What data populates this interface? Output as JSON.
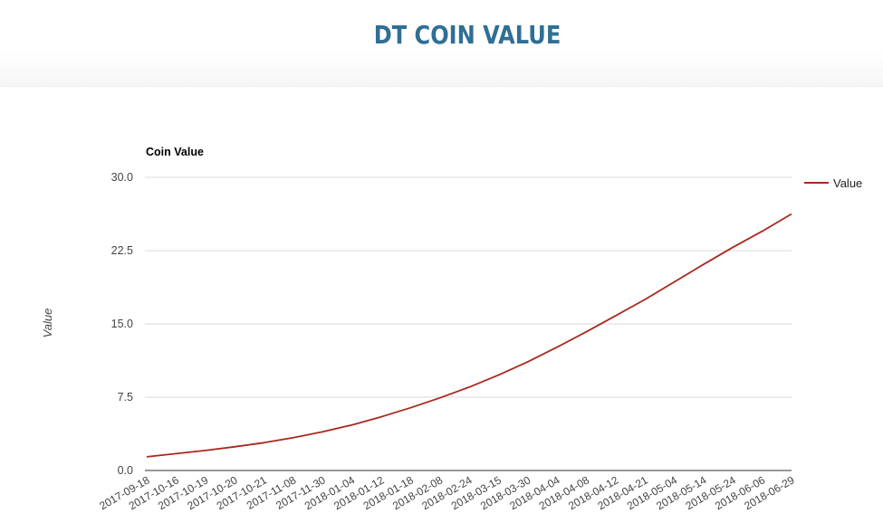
{
  "page": {
    "title": "DT COIN VALUE"
  },
  "colors": {
    "title": "#2f6f95",
    "series": "#a8291c",
    "grid": "#d9d9d9",
    "axis": "#333333",
    "text": "#444444"
  },
  "chart_data": {
    "type": "line",
    "title": "Coin Value",
    "xlabel": "",
    "ylabel": "Value",
    "ylim": [
      0,
      30
    ],
    "yticks": [
      "0.0",
      "7.5",
      "15.0",
      "22.5",
      "30.0"
    ],
    "grid": true,
    "legend_position": "right",
    "categories": [
      "2017-09-18",
      "2017-10-16",
      "2017-10-19",
      "2017-10-20",
      "2017-10-21",
      "2017-11-08",
      "2017-11-30",
      "2018-01-04",
      "2018-01-12",
      "2018-01-18",
      "2018-02-08",
      "2018-02-24",
      "2018-03-15",
      "2018-03-30",
      "2018-04-04",
      "2018-04-08",
      "2018-04-12",
      "2018-04-21",
      "2018-05-04",
      "2018-05-14",
      "2018-05-24",
      "2018-06-06",
      "2018-06-29"
    ],
    "series": [
      {
        "name": "Value",
        "values": [
          1.4,
          1.72,
          2.05,
          2.43,
          2.84,
          3.35,
          3.96,
          4.66,
          5.49,
          6.42,
          7.43,
          8.53,
          9.76,
          11.12,
          12.62,
          14.19,
          15.84,
          17.5,
          19.3,
          21.09,
          22.84,
          24.48,
          26.25
        ]
      }
    ]
  }
}
